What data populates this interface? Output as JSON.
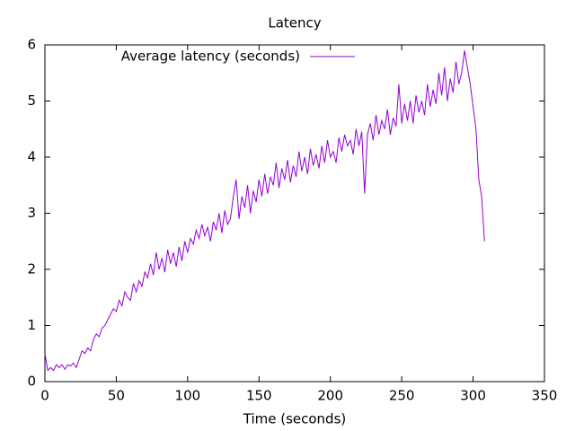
{
  "chart_data": {
    "type": "line",
    "title": "Latency",
    "xlabel": "Time (seconds)",
    "xlim": [
      0,
      350
    ],
    "xticks": [
      0,
      50,
      100,
      150,
      200,
      250,
      300,
      350
    ],
    "ylim": [
      0,
      6
    ],
    "yticks": [
      0,
      1,
      2,
      3,
      4,
      5,
      6
    ],
    "legend": "top-left",
    "x": [
      0,
      2,
      4,
      6,
      8,
      10,
      12,
      14,
      16,
      18,
      20,
      22,
      24,
      26,
      28,
      30,
      32,
      34,
      36,
      38,
      40,
      42,
      44,
      46,
      48,
      50,
      52,
      54,
      56,
      58,
      60,
      62,
      64,
      66,
      68,
      70,
      72,
      74,
      76,
      78,
      80,
      82,
      84,
      86,
      88,
      90,
      92,
      94,
      96,
      98,
      100,
      102,
      104,
      106,
      108,
      110,
      112,
      114,
      116,
      118,
      120,
      122,
      124,
      126,
      128,
      130,
      132,
      134,
      136,
      138,
      140,
      142,
      144,
      146,
      148,
      150,
      152,
      154,
      156,
      158,
      160,
      162,
      164,
      166,
      168,
      170,
      172,
      174,
      176,
      178,
      180,
      182,
      184,
      186,
      188,
      190,
      192,
      194,
      196,
      198,
      200,
      202,
      204,
      206,
      208,
      210,
      212,
      214,
      216,
      218,
      220,
      222,
      224,
      226,
      228,
      230,
      232,
      234,
      236,
      238,
      240,
      242,
      244,
      246,
      248,
      250,
      252,
      254,
      256,
      258,
      260,
      262,
      264,
      266,
      268,
      270,
      272,
      274,
      276,
      278,
      280,
      282,
      284,
      286,
      288,
      290,
      292,
      294,
      296,
      298,
      300,
      302,
      304,
      306,
      308
    ],
    "series": [
      {
        "name": "Average latency (seconds)",
        "color": "#9400d3",
        "values": [
          0.5,
          0.2,
          0.25,
          0.2,
          0.3,
          0.25,
          0.3,
          0.22,
          0.3,
          0.28,
          0.33,
          0.25,
          0.4,
          0.55,
          0.5,
          0.6,
          0.55,
          0.75,
          0.85,
          0.8,
          0.95,
          1.0,
          1.1,
          1.2,
          1.3,
          1.25,
          1.45,
          1.35,
          1.6,
          1.5,
          1.45,
          1.75,
          1.6,
          1.8,
          1.7,
          1.95,
          1.85,
          2.1,
          1.9,
          2.3,
          2.0,
          2.2,
          1.95,
          2.35,
          2.1,
          2.3,
          2.05,
          2.4,
          2.15,
          2.5,
          2.3,
          2.55,
          2.45,
          2.7,
          2.55,
          2.8,
          2.6,
          2.75,
          2.5,
          2.85,
          2.7,
          3.0,
          2.65,
          3.05,
          2.8,
          2.9,
          3.3,
          3.6,
          2.9,
          3.3,
          3.1,
          3.5,
          3.0,
          3.4,
          3.2,
          3.6,
          3.3,
          3.7,
          3.35,
          3.65,
          3.5,
          3.9,
          3.45,
          3.8,
          3.6,
          3.95,
          3.55,
          3.85,
          3.65,
          4.1,
          3.75,
          4.0,
          3.7,
          4.15,
          3.85,
          4.05,
          3.8,
          4.2,
          3.9,
          4.3,
          4.0,
          4.1,
          3.9,
          4.35,
          4.1,
          4.4,
          4.2,
          4.3,
          4.05,
          4.5,
          4.2,
          4.45,
          3.35,
          4.4,
          4.6,
          4.3,
          4.75,
          4.4,
          4.65,
          4.5,
          4.85,
          4.4,
          4.7,
          4.55,
          5.3,
          4.6,
          4.95,
          4.65,
          5.0,
          4.6,
          5.1,
          4.8,
          5.0,
          4.75,
          5.3,
          4.9,
          5.2,
          4.95,
          5.5,
          5.1,
          5.6,
          5.0,
          5.4,
          5.15,
          5.7,
          5.3,
          5.5,
          5.9,
          5.6,
          5.3,
          4.9,
          4.5,
          3.6,
          3.3,
          2.5
        ]
      }
    ]
  }
}
